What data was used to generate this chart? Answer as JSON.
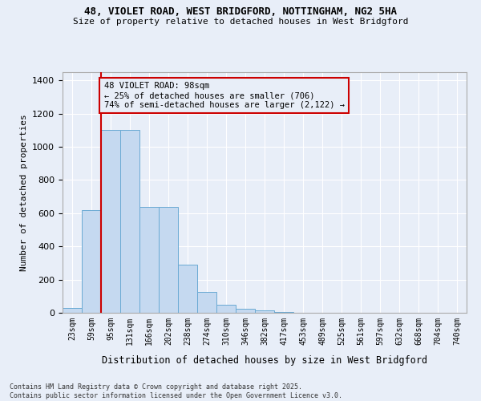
{
  "title_line1": "48, VIOLET ROAD, WEST BRIDGFORD, NOTTINGHAM, NG2 5HA",
  "title_line2": "Size of property relative to detached houses in West Bridgford",
  "xlabel": "Distribution of detached houses by size in West Bridgford",
  "ylabel": "Number of detached properties",
  "footer_line1": "Contains HM Land Registry data © Crown copyright and database right 2025.",
  "footer_line2": "Contains public sector information licensed under the Open Government Licence v3.0.",
  "bar_labels": [
    "23sqm",
    "59sqm",
    "95sqm",
    "131sqm",
    "166sqm",
    "202sqm",
    "238sqm",
    "274sqm",
    "310sqm",
    "346sqm",
    "382sqm",
    "417sqm",
    "453sqm",
    "489sqm",
    "525sqm",
    "561sqm",
    "597sqm",
    "632sqm",
    "668sqm",
    "704sqm",
    "740sqm"
  ],
  "bar_values": [
    30,
    620,
    1100,
    1100,
    640,
    640,
    290,
    125,
    50,
    25,
    15,
    5,
    0,
    0,
    0,
    0,
    0,
    0,
    0,
    0,
    0
  ],
  "bar_color": "#c5d9f0",
  "bar_edgecolor": "#6aaad4",
  "bg_color": "#e8eef8",
  "grid_color": "#ffffff",
  "vline_color": "#cc0000",
  "vline_x_index": 2,
  "annotation_text": "48 VIOLET ROAD: 98sqm\n← 25% of detached houses are smaller (706)\n74% of semi-detached houses are larger (2,122) →",
  "annotation_box_color": "#cc0000",
  "ylim": [
    0,
    1450
  ],
  "yticks": [
    0,
    200,
    400,
    600,
    800,
    1000,
    1200,
    1400
  ]
}
